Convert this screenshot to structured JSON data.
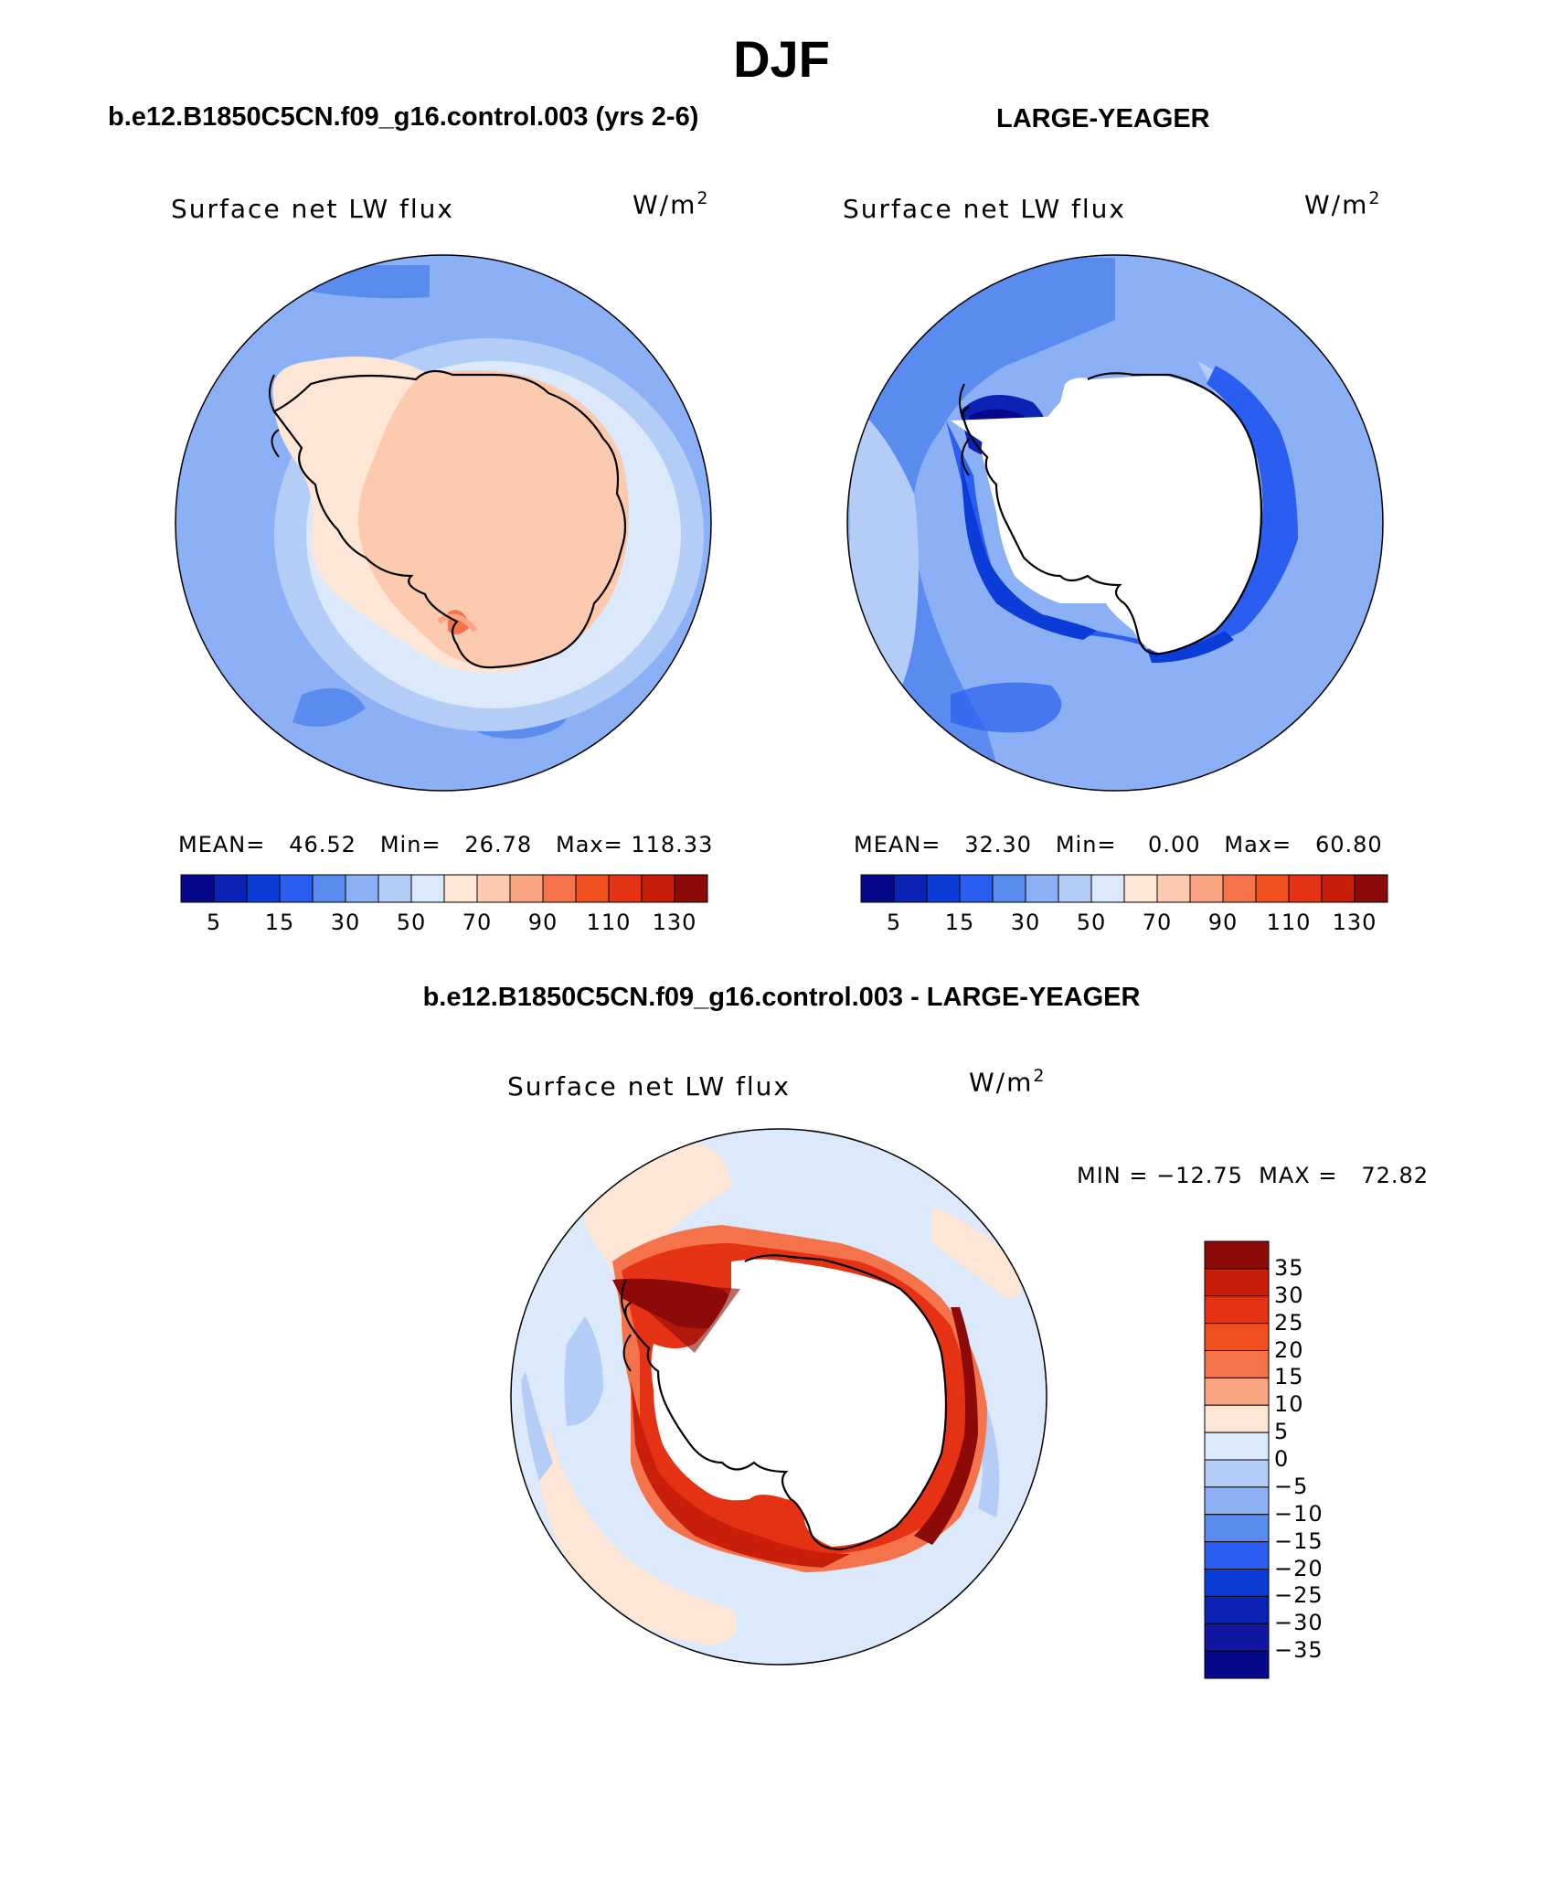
{
  "page": {
    "season": "DJF",
    "panel1_title": "b.e12.B1850C5CN.f09_g16.control.003 (yrs 2-6)",
    "panel2_title": "LARGE-YEAGER",
    "diff_title": "b.e12.B1850C5CN.f09_g16.control.003 - LARGE-YEAGER"
  },
  "panels": [
    {
      "variable": "Surface net LW flux",
      "units_base": "W/m",
      "units_exp": "2",
      "stats": "MEAN=   46.52   Min=   26.78   Max= 118.33"
    },
    {
      "variable": "Surface net LW flux",
      "units_base": "W/m",
      "units_exp": "2",
      "stats": "MEAN=   32.30   Min=    0.00   Max=   60.80"
    },
    {
      "variable": "Surface net LW flux",
      "units_base": "W/m",
      "units_exp": "2",
      "stats": "MIN = −12.75  MAX =   72.82"
    }
  ],
  "colorbar_abs": {
    "colors": [
      "#08088c",
      "#0a23b4",
      "#0c3cd8",
      "#2a5ef0",
      "#5a8cf0",
      "#8cb0f5",
      "#b4cdf7",
      "#dce9fa",
      "#fde6d6",
      "#fccaaf",
      "#faa582",
      "#f5734a",
      "#f0501e",
      "#e63214",
      "#c81e0a",
      "#8c0a08"
    ],
    "labels": [
      "5",
      "15",
      "30",
      "50",
      "70",
      "90",
      "110",
      "130"
    ]
  },
  "colorbar_diff": {
    "colors": [
      "#8c0a08",
      "#c81e0a",
      "#e63214",
      "#f0501e",
      "#f5734a",
      "#faa582",
      "#fde6d6",
      "#dce9fa",
      "#b4cdf7",
      "#8cb0f5",
      "#5a8cf0",
      "#2a5ef0",
      "#0c3cd8",
      "#0a23b4",
      "#1216a0",
      "#08088c"
    ],
    "labels": [
      "35",
      "30",
      "25",
      "20",
      "15",
      "10",
      "5",
      "0",
      "−5",
      "−10",
      "−15",
      "−20",
      "−25",
      "−30",
      "−35"
    ]
  }
}
